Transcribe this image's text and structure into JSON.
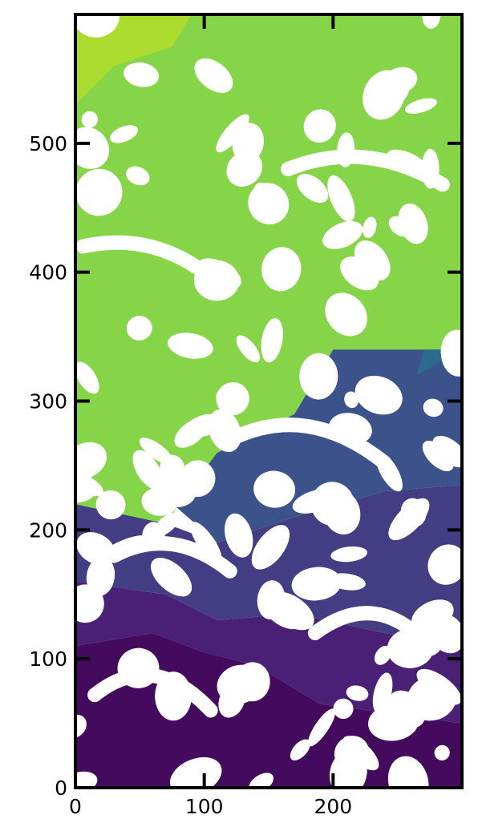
{
  "chart_data": {
    "type": "heatmap",
    "title": "",
    "xlabel": "",
    "ylabel": "",
    "xlim": [
      0,
      300
    ],
    "ylim": [
      0,
      600
    ],
    "x_ticks": [
      0,
      100,
      200
    ],
    "y_ticks": [
      0,
      100,
      200,
      300,
      400,
      500
    ],
    "x_tick_labels": [
      "0",
      "100",
      "200"
    ],
    "y_tick_labels": [
      "0",
      "100",
      "200",
      "300",
      "400",
      "500"
    ],
    "grid": false,
    "colormap": "viridis",
    "mask_color": "#ffffff",
    "regions": [
      {
        "name": "bottom-dark",
        "color": "#440a5e",
        "polygon": [
          [
            0,
            0
          ],
          [
            300,
            0
          ],
          [
            300,
            50
          ],
          [
            190,
            65
          ],
          [
            140,
            95
          ],
          [
            100,
            105
          ],
          [
            60,
            120
          ],
          [
            0,
            110
          ]
        ]
      },
      {
        "name": "lower-purple",
        "color": "#4a1f76",
        "polygon": [
          [
            0,
            110
          ],
          [
            60,
            120
          ],
          [
            100,
            105
          ],
          [
            140,
            95
          ],
          [
            190,
            65
          ],
          [
            300,
            50
          ],
          [
            300,
            110
          ],
          [
            240,
            120
          ],
          [
            170,
            135
          ],
          [
            110,
            130
          ],
          [
            70,
            150
          ],
          [
            0,
            160
          ]
        ]
      },
      {
        "name": "mid-indigo",
        "color": "#433d84",
        "polygon": [
          [
            0,
            160
          ],
          [
            70,
            150
          ],
          [
            110,
            130
          ],
          [
            170,
            135
          ],
          [
            240,
            120
          ],
          [
            300,
            110
          ],
          [
            300,
            235
          ],
          [
            240,
            230
          ],
          [
            170,
            210
          ],
          [
            110,
            190
          ],
          [
            70,
            205
          ],
          [
            0,
            220
          ]
        ]
      },
      {
        "name": "mid-blue",
        "color": "#3b528b",
        "polygon": [
          [
            110,
            190
          ],
          [
            170,
            210
          ],
          [
            240,
            230
          ],
          [
            300,
            235
          ],
          [
            300,
            340
          ],
          [
            200,
            340
          ],
          [
            170,
            290
          ],
          [
            110,
            260
          ],
          [
            70,
            225
          ]
        ]
      },
      {
        "name": "teal",
        "color": "#2c6a8e",
        "polygon": [
          [
            265,
            320
          ],
          [
            285,
            390
          ],
          [
            300,
            400
          ],
          [
            300,
            340
          ]
        ]
      },
      {
        "name": "upper-green",
        "color": "#86d549",
        "polygon": [
          [
            0,
            220
          ],
          [
            70,
            205
          ],
          [
            110,
            260
          ],
          [
            170,
            290
          ],
          [
            200,
            340
          ],
          [
            300,
            340
          ],
          [
            300,
            600
          ],
          [
            0,
            600
          ]
        ]
      },
      {
        "name": "top-left-yellow",
        "color": "#addc30",
        "polygon": [
          [
            0,
            530
          ],
          [
            30,
            560
          ],
          [
            75,
            575
          ],
          [
            90,
            600
          ],
          [
            0,
            600
          ]
        ]
      }
    ]
  }
}
